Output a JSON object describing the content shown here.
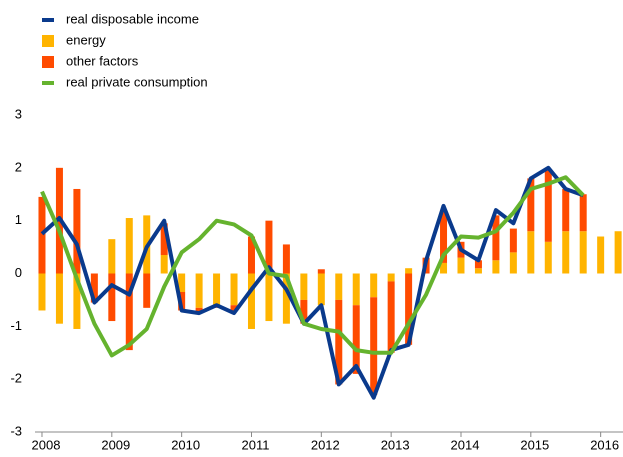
{
  "chart_data": {
    "type": "bar",
    "x": [
      2008,
      2008.25,
      2008.5,
      2008.75,
      2009,
      2009.25,
      2009.5,
      2009.75,
      2010,
      2010.25,
      2010.5,
      2010.75,
      2011,
      2011.25,
      2011.5,
      2011.75,
      2012,
      2012.25,
      2012.5,
      2012.75,
      2013,
      2013.25,
      2013.5,
      2013.75,
      2014,
      2014.25,
      2014.5,
      2014.75,
      2015,
      2015.25,
      2015.5,
      2015.75,
      2016,
      2016.25
    ],
    "series": [
      {
        "name": "real disposable income",
        "type": "line",
        "color": "#0a3a8c",
        "values": [
          0.75,
          1.05,
          0.55,
          -0.55,
          -0.22,
          -0.4,
          0.5,
          1.0,
          -0.7,
          -0.75,
          -0.6,
          -0.75,
          -0.3,
          0.12,
          -0.3,
          -0.95,
          -0.6,
          -2.1,
          -1.75,
          -2.35,
          -1.45,
          -1.35,
          0.25,
          1.28,
          0.45,
          0.25,
          1.2,
          0.95,
          1.8,
          2.0,
          1.6,
          1.48,
          null,
          null
        ]
      },
      {
        "name": "energy",
        "type": "bar",
        "color": "#ffb400",
        "values": [
          -0.7,
          -0.95,
          -1.05,
          0,
          0.65,
          1.05,
          1.1,
          0.35,
          -0.35,
          -0.65,
          -0.6,
          -0.6,
          -1.05,
          -0.9,
          -0.95,
          -0.5,
          -0.6,
          -0.5,
          -0.6,
          -0.45,
          -0.15,
          0.1,
          0,
          0.2,
          0.3,
          0.1,
          0.25,
          0.4,
          0.8,
          0.6,
          0.8,
          0.8,
          0.7,
          0.8
        ]
      },
      {
        "name": "other factors",
        "type": "bar",
        "color": "#ff4b00",
        "values": [
          1.45,
          2.0,
          1.6,
          -0.55,
          -0.9,
          -1.45,
          -0.65,
          0.6,
          -0.35,
          -0.1,
          -0.05,
          -0.1,
          0.7,
          1.0,
          0.55,
          -0.45,
          0.08,
          -1.6,
          -1.3,
          -1.85,
          -1.35,
          -1.35,
          0.3,
          1.0,
          0.3,
          0.15,
          0.85,
          0.45,
          1.0,
          1.35,
          0.8,
          0.7,
          0,
          0
        ]
      },
      {
        "name": "real private consumption",
        "type": "line",
        "color": "#65b32e",
        "values": [
          1.55,
          0.8,
          -0.1,
          -0.95,
          -1.55,
          -1.35,
          -1.05,
          -0.25,
          0.4,
          0.65,
          1.0,
          0.93,
          0.72,
          0.0,
          -0.05,
          -0.95,
          -1.05,
          -1.1,
          -1.45,
          -1.5,
          -1.5,
          -0.95,
          -0.4,
          0.35,
          0.7,
          0.68,
          0.8,
          1.15,
          1.6,
          1.7,
          1.82,
          1.48,
          null,
          null
        ]
      }
    ],
    "xlim": [
      2007.9,
      2016.32
    ],
    "xticks": [
      2008,
      2009,
      2010,
      2011,
      2012,
      2013,
      2014,
      2015,
      2016
    ],
    "ylim": [
      -3,
      3
    ],
    "yticks": [
      -3,
      -2,
      -1,
      0,
      1,
      2,
      3
    ],
    "legend": "top-left",
    "grid": false
  }
}
